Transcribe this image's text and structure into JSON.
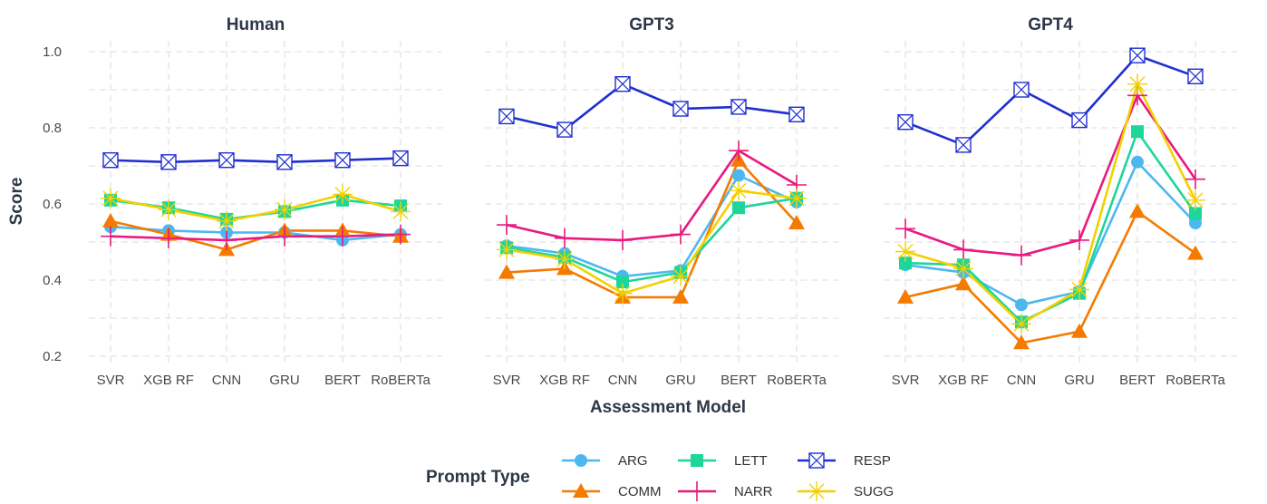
{
  "chart_data": {
    "type": "line",
    "facets": [
      "Human",
      "GPT3",
      "GPT4"
    ],
    "categories": [
      "SVR",
      "XGB RF",
      "CNN",
      "GRU",
      "BERT",
      "RoBERTa"
    ],
    "xlabel": "Assessment Model",
    "ylabel": "Score",
    "ylim": [
      0.2,
      1.0
    ],
    "yticks": [
      "0.2",
      "0.4",
      "0.6",
      "0.8",
      "1.0"
    ],
    "legend": {
      "title": "Prompt Type",
      "placement": "bottom"
    },
    "series": [
      {
        "name": "ARG",
        "color": "#4db8f0",
        "marker": "circle",
        "values": {
          "Human": [
            0.54,
            0.53,
            0.525,
            0.525,
            0.505,
            0.52
          ],
          "GPT3": [
            0.49,
            0.47,
            0.41,
            0.425,
            0.675,
            0.605
          ],
          "GPT4": [
            0.44,
            0.42,
            0.335,
            0.37,
            0.71,
            0.55
          ]
        }
      },
      {
        "name": "COMM",
        "color": "#f47b00",
        "marker": "triangle",
        "values": {
          "Human": [
            0.555,
            0.52,
            0.48,
            0.53,
            0.53,
            0.515
          ],
          "GPT3": [
            0.42,
            0.43,
            0.355,
            0.355,
            0.715,
            0.55
          ],
          "GPT4": [
            0.355,
            0.39,
            0.235,
            0.265,
            0.58,
            0.47
          ]
        }
      },
      {
        "name": "LETT",
        "color": "#1ed69a",
        "marker": "square",
        "values": {
          "Human": [
            0.61,
            0.59,
            0.56,
            0.58,
            0.61,
            0.595
          ],
          "GPT3": [
            0.485,
            0.46,
            0.395,
            0.42,
            0.59,
            0.615
          ],
          "GPT4": [
            0.445,
            0.44,
            0.29,
            0.365,
            0.79,
            0.575
          ]
        }
      },
      {
        "name": "NARR",
        "color": "#e8197f",
        "marker": "plus",
        "values": {
          "Human": [
            0.515,
            0.51,
            0.505,
            0.515,
            0.515,
            0.52
          ],
          "GPT3": [
            0.545,
            0.51,
            0.505,
            0.52,
            0.74,
            0.65
          ],
          "GPT4": [
            0.535,
            0.48,
            0.465,
            0.505,
            0.885,
            0.665
          ]
        }
      },
      {
        "name": "RESP",
        "color": "#1f2fd0",
        "marker": "boxcross",
        "values": {
          "Human": [
            0.715,
            0.71,
            0.715,
            0.71,
            0.715,
            0.72
          ],
          "GPT3": [
            0.83,
            0.795,
            0.915,
            0.85,
            0.855,
            0.835
          ],
          "GPT4": [
            0.815,
            0.755,
            0.9,
            0.82,
            0.99,
            0.935
          ]
        }
      },
      {
        "name": "SUGG",
        "color": "#f2d100",
        "marker": "star",
        "values": {
          "Human": [
            0.615,
            0.585,
            0.555,
            0.585,
            0.625,
            0.58
          ],
          "GPT3": [
            0.48,
            0.455,
            0.365,
            0.41,
            0.635,
            0.615
          ],
          "GPT4": [
            0.475,
            0.43,
            0.285,
            0.375,
            0.915,
            0.61
          ]
        }
      }
    ]
  }
}
